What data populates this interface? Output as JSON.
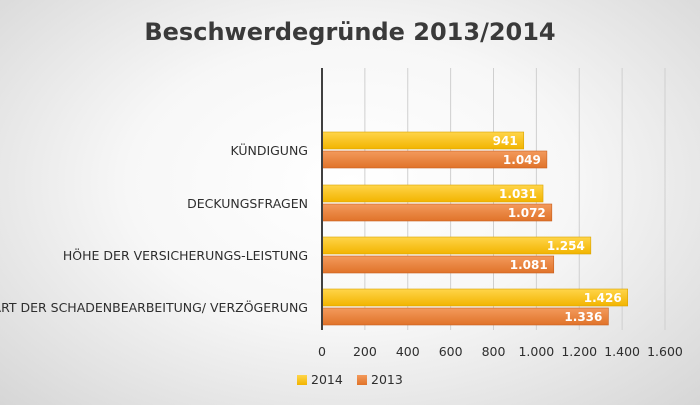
{
  "chart_data": {
    "type": "bar",
    "orientation": "horizontal",
    "title": "Beschwerdegründe 2013/2014",
    "categories": [
      "KÜNDIGUNG",
      "DECKUNGSFRAGEN",
      "HÖHE DER VERSICHERUNGS-LEISTUNG",
      "ART DER SCHADENBEARBEITUNG/ VERZÖGERUNG"
    ],
    "series": [
      {
        "name": "2014",
        "color": "#FFC000",
        "values": [
          941,
          1031,
          1254,
          1426
        ],
        "labels": [
          "941",
          "1.031",
          "1.254",
          "1.426"
        ]
      },
      {
        "name": "2013",
        "color": "#ED7D31",
        "values": [
          1049,
          1072,
          1081,
          1336
        ],
        "labels": [
          "1.049",
          "1.072",
          "1.081",
          "1.336"
        ]
      }
    ],
    "xlim": [
      0,
      1600
    ],
    "xticks": [
      0,
      200,
      400,
      600,
      800,
      1000,
      1200,
      1400,
      1600
    ],
    "xtick_labels": [
      "0",
      "200",
      "400",
      "600",
      "800",
      "1.000",
      "1.200",
      "1.400",
      "1.600"
    ],
    "grid": true,
    "legend": "bottom",
    "xlabel": "",
    "ylabel": ""
  }
}
